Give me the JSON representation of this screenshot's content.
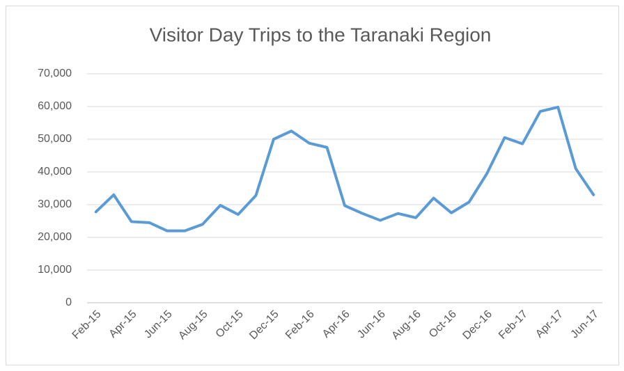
{
  "chart_data": {
    "type": "line",
    "title": "Visitor Day Trips to the Taranaki Region",
    "categories": [
      "Feb-15",
      null,
      "Apr-15",
      null,
      "Jun-15",
      null,
      "Aug-15",
      null,
      "Oct-15",
      null,
      "Dec-15",
      null,
      "Feb-16",
      null,
      "Apr-16",
      null,
      "Jun-16",
      null,
      "Aug-16",
      null,
      "Oct-16",
      null,
      "Dec-16",
      null,
      "Feb-17",
      null,
      "Apr-17",
      null,
      "Jun-17"
    ],
    "series": [
      {
        "name": "Visitor Day Trips",
        "color": "#5b9bd5",
        "values": [
          27800,
          33000,
          24800,
          24500,
          22000,
          22000,
          24000,
          29800,
          27000,
          32800,
          50000,
          52500,
          48800,
          47500,
          29700,
          27300,
          25200,
          27300,
          26000,
          32000,
          27500,
          30800,
          39500,
          50500,
          48600,
          58500,
          59800,
          41000,
          33000
        ]
      }
    ],
    "ylim": [
      0,
      70000
    ],
    "yticks": [
      0,
      {
        "value": 10000,
        "label": "10,000"
      },
      {
        "value": 20000,
        "label": "20,000"
      },
      {
        "value": 30000,
        "label": "30,000"
      },
      {
        "value": 40000,
        "label": "40,000"
      },
      {
        "value": 50000,
        "label": "50,000"
      },
      {
        "value": 60000,
        "label": "60,000"
      },
      {
        "value": 70000,
        "label": "70,000"
      }
    ],
    "grid": true
  }
}
